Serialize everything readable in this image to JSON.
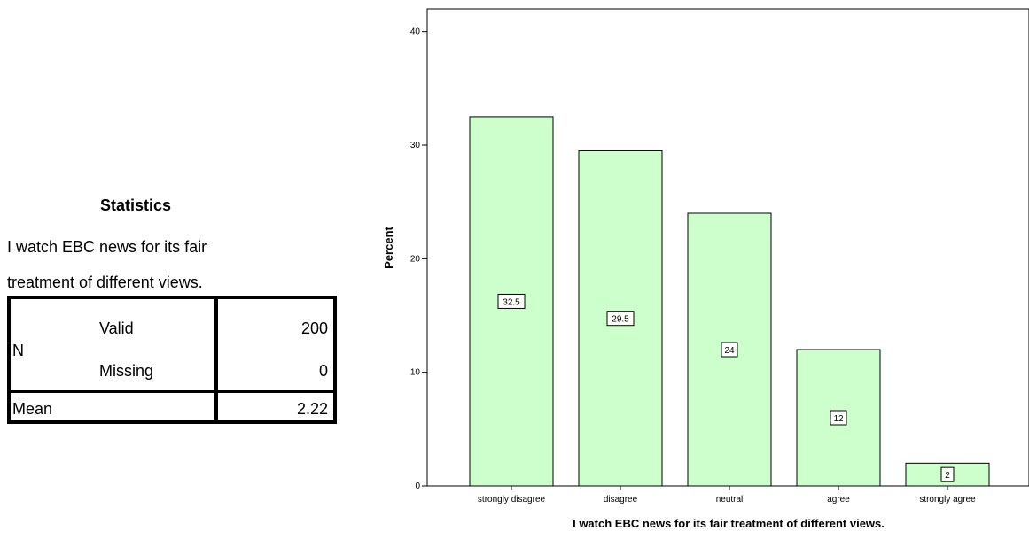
{
  "statistics": {
    "title": "Statistics",
    "subtitle_line1": "I watch EBC news for its fair",
    "subtitle_line2": "treatment of different views.",
    "n_label": "N",
    "valid_label": "Valid",
    "valid_value": "200",
    "missing_label": "Missing",
    "missing_value": "0",
    "mean_label": "Mean",
    "mean_value": "2.22"
  },
  "chart_data": {
    "type": "bar",
    "categories": [
      "strongly disagree",
      "disagree",
      "neutral",
      "agree",
      "strongly agree"
    ],
    "values": [
      32.5,
      29.5,
      24,
      12,
      2
    ],
    "data_labels": [
      "32.5",
      "29.5",
      "24",
      "12",
      "2"
    ],
    "xlabel": "I watch EBC news for its fair treatment of different views.",
    "ylabel": "Percent",
    "ylim": [
      0,
      42
    ],
    "yticks": [
      0,
      10,
      20,
      30,
      40
    ],
    "grid": false,
    "bar_color": "#ccffcc",
    "bar_edge_color": "#000000"
  }
}
